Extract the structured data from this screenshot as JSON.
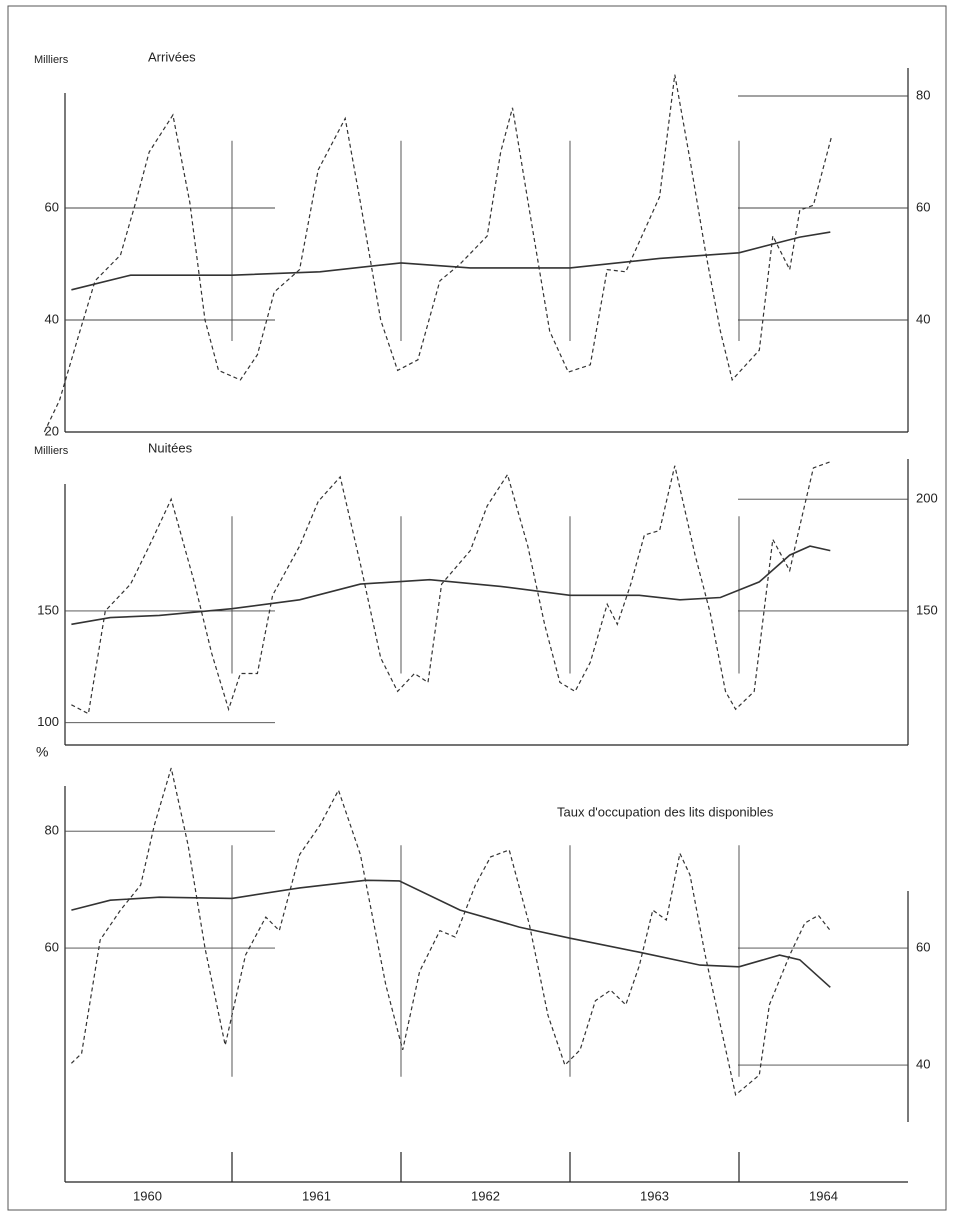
{
  "chart_data": [
    {
      "type": "line",
      "title": "Arrivées",
      "ylabel": "Milliers",
      "xlim": [
        1959.88,
        1965
      ],
      "ylim": [
        20,
        85
      ],
      "yticks": [
        20,
        40,
        60
      ],
      "y2lim": [
        20,
        85
      ],
      "y2ticks": [
        40,
        60,
        80
      ],
      "series": [
        {
          "color": "#333333",
          "dash": true,
          "x": [
            1959.89,
            1959.98,
            1960.1,
            1960.19,
            1960.34,
            1960.43,
            1960.51,
            1960.65,
            1960.75,
            1960.84,
            1960.92,
            1961.05,
            1961.15,
            1961.25,
            1961.4,
            1961.51,
            1961.67,
            1961.76,
            1961.88,
            1961.98,
            1962.1,
            1962.23,
            1962.35,
            1962.51,
            1962.59,
            1962.66,
            1962.76,
            1962.88,
            1962.99,
            1963.12,
            1963.22,
            1963.33,
            1963.44,
            1963.53,
            1963.62,
            1963.71,
            1963.8,
            1963.89,
            1963.96,
            1964.12,
            1964.2,
            1964.3,
            1964.36,
            1964.44,
            1964.55
          ],
          "values": [
            20,
            25.7,
            38,
            47,
            51.6,
            61,
            70,
            76.6,
            61,
            40,
            31,
            29.3,
            33.8,
            45,
            49,
            66.8,
            76,
            61,
            40,
            31,
            32.9,
            47,
            50,
            55,
            70,
            77.9,
            59.6,
            38,
            30.7,
            32,
            49,
            48.6,
            56,
            62,
            83.8,
            68.6,
            52.5,
            38,
            29.3,
            34.6,
            55,
            49,
            59.6,
            60.5,
            73
          ]
        },
        {
          "color": "#333333",
          "dash": false,
          "x": [
            1960.05,
            1960.4,
            1961,
            1961.52,
            1962,
            1962.41,
            1963,
            1963.53,
            1964,
            1964.36,
            1964.54
          ],
          "values": [
            45.4,
            48,
            48,
            48.6,
            50.2,
            49.3,
            49.3,
            51,
            52,
            54.8,
            55.7
          ]
        }
      ]
    },
    {
      "type": "line",
      "title": "Nuitées",
      "ylabel": "Milliers",
      "xlim": [
        1959.88,
        1965
      ],
      "ylim": [
        90,
        218
      ],
      "yticks": [
        100,
        150
      ],
      "y2lim": [
        90,
        218
      ],
      "y2ticks": [
        150,
        200
      ],
      "series": [
        {
          "color": "#333333",
          "dash": true,
          "x": [
            1960.05,
            1960.15,
            1960.25,
            1960.4,
            1960.51,
            1960.64,
            1960.78,
            1960.88,
            1960.98,
            1961.05,
            1961.15,
            1961.24,
            1961.4,
            1961.51,
            1961.64,
            1961.76,
            1961.88,
            1961.98,
            1962.08,
            1962.16,
            1962.24,
            1962.41,
            1962.51,
            1962.63,
            1962.75,
            1962.85,
            1962.94,
            1963.03,
            1963.12,
            1963.22,
            1963.28,
            1963.36,
            1963.44,
            1963.53,
            1963.62,
            1963.74,
            1963.83,
            1963.92,
            1963.98,
            1964.09,
            1964.2,
            1964.3,
            1964.36,
            1964.44,
            1964.55
          ],
          "values": [
            108,
            104,
            150,
            162,
            179,
            200,
            162,
            131,
            106,
            122,
            122,
            157,
            179,
            199,
            210,
            171,
            129,
            114,
            122,
            118,
            162,
            177,
            197,
            211,
            179,
            144,
            118,
            114,
            127,
            153,
            144,
            162,
            184,
            186,
            215,
            175,
            149,
            114,
            106,
            114,
            182,
            168,
            188,
            214,
            217
          ]
        },
        {
          "color": "#333333",
          "dash": false,
          "x": [
            1960.05,
            1960.28,
            1960.57,
            1961,
            1961.4,
            1961.76,
            1962.17,
            1962.59,
            1963,
            1963.41,
            1963.65,
            1963.89,
            1964.12,
            1964.3,
            1964.42,
            1964.54
          ],
          "values": [
            144,
            147,
            148,
            151,
            155,
            162,
            164,
            161,
            157,
            157,
            155,
            156,
            163,
            175,
            179,
            177
          ]
        }
      ]
    },
    {
      "type": "line",
      "title": "Taux d'occupation des lits disponibles",
      "ylabel": "%",
      "xlim": [
        1959.88,
        1965
      ],
      "ylim": [
        20,
        92
      ],
      "yticks": [
        60,
        80
      ],
      "y2lim": [
        20,
        92
      ],
      "y2ticks": [
        40,
        60
      ],
      "xticks": [
        {
          "value": 1960.5,
          "label": "1960"
        },
        {
          "value": 1961.5,
          "label": "1961"
        },
        {
          "value": 1962.5,
          "label": "1962"
        },
        {
          "value": 1963.5,
          "label": "1963"
        },
        {
          "value": 1964.5,
          "label": "1964"
        }
      ],
      "xticks_minor": [
        1961,
        1962,
        1963,
        1964
      ],
      "series": [
        {
          "color": "#333333",
          "dash": true,
          "x": [
            1960.05,
            1960.11,
            1960.22,
            1960.34,
            1960.46,
            1960.54,
            1960.64,
            1960.74,
            1960.84,
            1960.96,
            1961.08,
            1961.2,
            1961.28,
            1961.4,
            1961.52,
            1961.63,
            1961.76,
            1961.91,
            1962.01,
            1962.11,
            1962.23,
            1962.32,
            1962.44,
            1962.53,
            1962.64,
            1962.76,
            1962.87,
            1962.97,
            1963.06,
            1963.15,
            1963.24,
            1963.33,
            1963.41,
            1963.49,
            1963.57,
            1963.65,
            1963.71,
            1963.8,
            1963.89,
            1963.98,
            1964.12,
            1964.18,
            1964.3,
            1964.39,
            1964.47,
            1964.54
          ],
          "values": [
            40.3,
            42,
            61.4,
            66.5,
            70.8,
            81,
            90.8,
            77.6,
            60,
            43.4,
            58.8,
            65.3,
            63,
            76,
            81,
            87,
            76,
            53.7,
            42.6,
            56,
            63,
            61.9,
            70.8,
            75.6,
            76.8,
            64,
            48.5,
            40,
            42.6,
            51,
            52.8,
            50.3,
            57,
            66.5,
            64.8,
            76.2,
            72.5,
            58.8,
            46.8,
            34.9,
            38.3,
            50.3,
            58.8,
            64.3,
            65.6,
            63
          ]
        },
        {
          "color": "#333333",
          "dash": false,
          "x": [
            1960.05,
            1960.28,
            1960.57,
            1961,
            1961.4,
            1961.79,
            1961.99,
            1962.35,
            1962.7,
            1963,
            1963.41,
            1963.77,
            1964,
            1964.24,
            1964.36,
            1964.54
          ],
          "values": [
            66.5,
            68.2,
            68.7,
            68.5,
            70.3,
            71.6,
            71.5,
            66.5,
            63.6,
            61.7,
            59.3,
            57.1,
            56.8,
            58.8,
            58,
            53.3
          ]
        }
      ]
    }
  ]
}
